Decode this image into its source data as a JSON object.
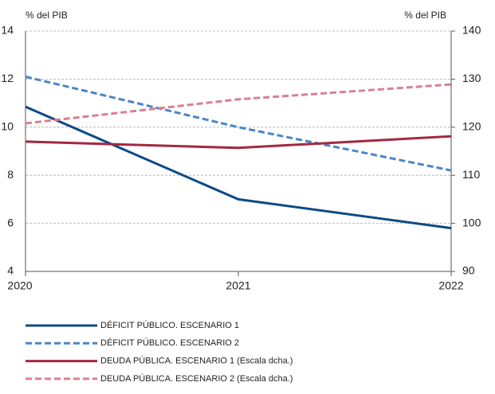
{
  "chart_data": {
    "type": "line",
    "ylabel": "% del PIB",
    "y2label": "% del PIB",
    "categories": [
      "2020",
      "2021",
      "2022"
    ],
    "ylim": [
      4,
      14
    ],
    "yticks": [
      4,
      6,
      8,
      10,
      12,
      14
    ],
    "y2lim": [
      90,
      140
    ],
    "y2ticks": [
      90,
      100,
      110,
      120,
      130,
      140
    ],
    "grid": true,
    "series": [
      {
        "name": "DÉFICIT PÚBLICO. ESCENARIO 1",
        "color": "#0d4a85",
        "dashed": false,
        "values": [
          10.85,
          7.0,
          5.8
        ]
      },
      {
        "name": "DÉFICIT PÚBLICO. ESCENARIO 2",
        "color": "#4a86c8",
        "dashed": true,
        "values": [
          12.1,
          10.0,
          8.2
        ]
      },
      {
        "name": "DEUDA PÚBLICA. ESCENARIO 1 (Escala dcha.)",
        "color": "#a3283f",
        "dashed": false,
        "axis": "y2",
        "values": [
          117,
          115.7,
          118.1
        ]
      },
      {
        "name": "DEUDA PÚBLICA. ESCENARIO 2 (Escala dcha.)",
        "color": "#d9808f",
        "dashed": true,
        "axis": "y2",
        "values": [
          120.8,
          125.8,
          128.9
        ]
      }
    ]
  }
}
